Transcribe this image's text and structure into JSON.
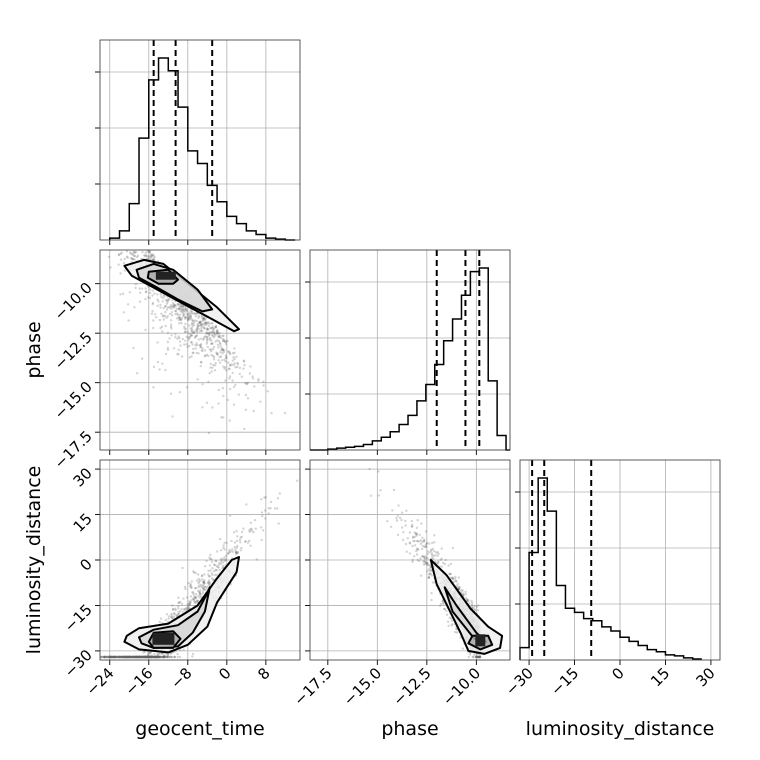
{
  "chart_data": {
    "type": "corner",
    "parameters": [
      "geocent_time",
      "phase",
      "luminosity_distance"
    ],
    "axis_labels": {
      "geocent_time": "geocent_time",
      "phase": "phase",
      "luminosity_distance": "luminosity_distance"
    },
    "ranges": {
      "geocent_time": [
        -26,
        15
      ],
      "phase": [
        -18.4,
        -8.3
      ],
      "luminosity_distance": [
        -33,
        33
      ]
    },
    "ticks": {
      "geocent_time": [
        -24,
        -16,
        -8,
        0,
        8
      ],
      "phase": [
        -17.5,
        -15.0,
        -12.5,
        -10.0
      ],
      "luminosity_distance": [
        -30,
        -15,
        0,
        15,
        30
      ]
    },
    "tick_labels": {
      "geocent_time": [
        "−24",
        "−16",
        "−8",
        "0",
        "8"
      ],
      "phase": [
        "−17.5",
        "−15.0",
        "−12.5",
        "−10.0"
      ],
      "luminosity_distance": [
        "−30",
        "−15",
        "0",
        "15",
        "30"
      ]
    },
    "grid": true,
    "histograms": {
      "geocent_time": {
        "bin_edges": [
          -24,
          -22,
          -20,
          -18,
          -16,
          -14,
          -12,
          -10,
          -8,
          -6,
          -4,
          -2,
          0,
          2,
          4,
          6,
          8,
          10,
          12,
          14
        ],
        "counts": [
          1,
          5,
          20,
          56,
          88,
          100,
          93,
          73,
          49,
          42,
          30,
          21,
          13,
          9,
          5,
          3,
          1,
          0.5,
          0
        ],
        "quantiles": [
          -15.0,
          -10.5,
          -3.0
        ]
      },
      "phase": {
        "bin_edges": [
          -18.4,
          -17.95,
          -17.5,
          -17.05,
          -16.6,
          -16.15,
          -15.7,
          -15.25,
          -14.8,
          -14.35,
          -13.9,
          -13.45,
          -13.0,
          -12.55,
          -12.1,
          -11.65,
          -11.2,
          -10.75,
          -10.3,
          -9.85,
          -9.4,
          -8.95,
          -8.5,
          -8.3
        ],
        "counts": [
          0,
          0,
          0.5,
          1,
          1.5,
          2,
          3,
          5,
          7,
          10,
          14,
          19,
          27,
          36,
          47,
          60,
          72,
          85,
          98,
          100,
          38,
          8,
          0
        ],
        "quantiles": [
          -12.0,
          -10.55,
          -9.85
        ]
      },
      "luminosity_distance": {
        "bin_edges": [
          -33,
          -30,
          -27,
          -24,
          -21,
          -18,
          -15,
          -12,
          -9,
          -6,
          -3,
          0,
          3,
          6,
          9,
          12,
          15,
          18,
          21,
          24,
          27
        ],
        "counts": [
          6,
          52,
          88,
          72,
          36,
          25,
          23,
          20,
          19,
          16,
          14,
          11,
          9,
          7,
          5,
          4,
          2.5,
          2,
          1,
          0.5
        ],
        "quantiles": [
          -29.0,
          -25.0,
          -9.5
        ]
      }
    },
    "joint_modes": {
      "phase_vs_geocent_time": {
        "x": -12.5,
        "y": -9.6
      },
      "luminosity_distance_vs_geocent_time": {
        "x": -13.0,
        "y": -26.0
      },
      "luminosity_distance_vs_phase": {
        "x": -9.8,
        "y": -26.5
      }
    }
  }
}
